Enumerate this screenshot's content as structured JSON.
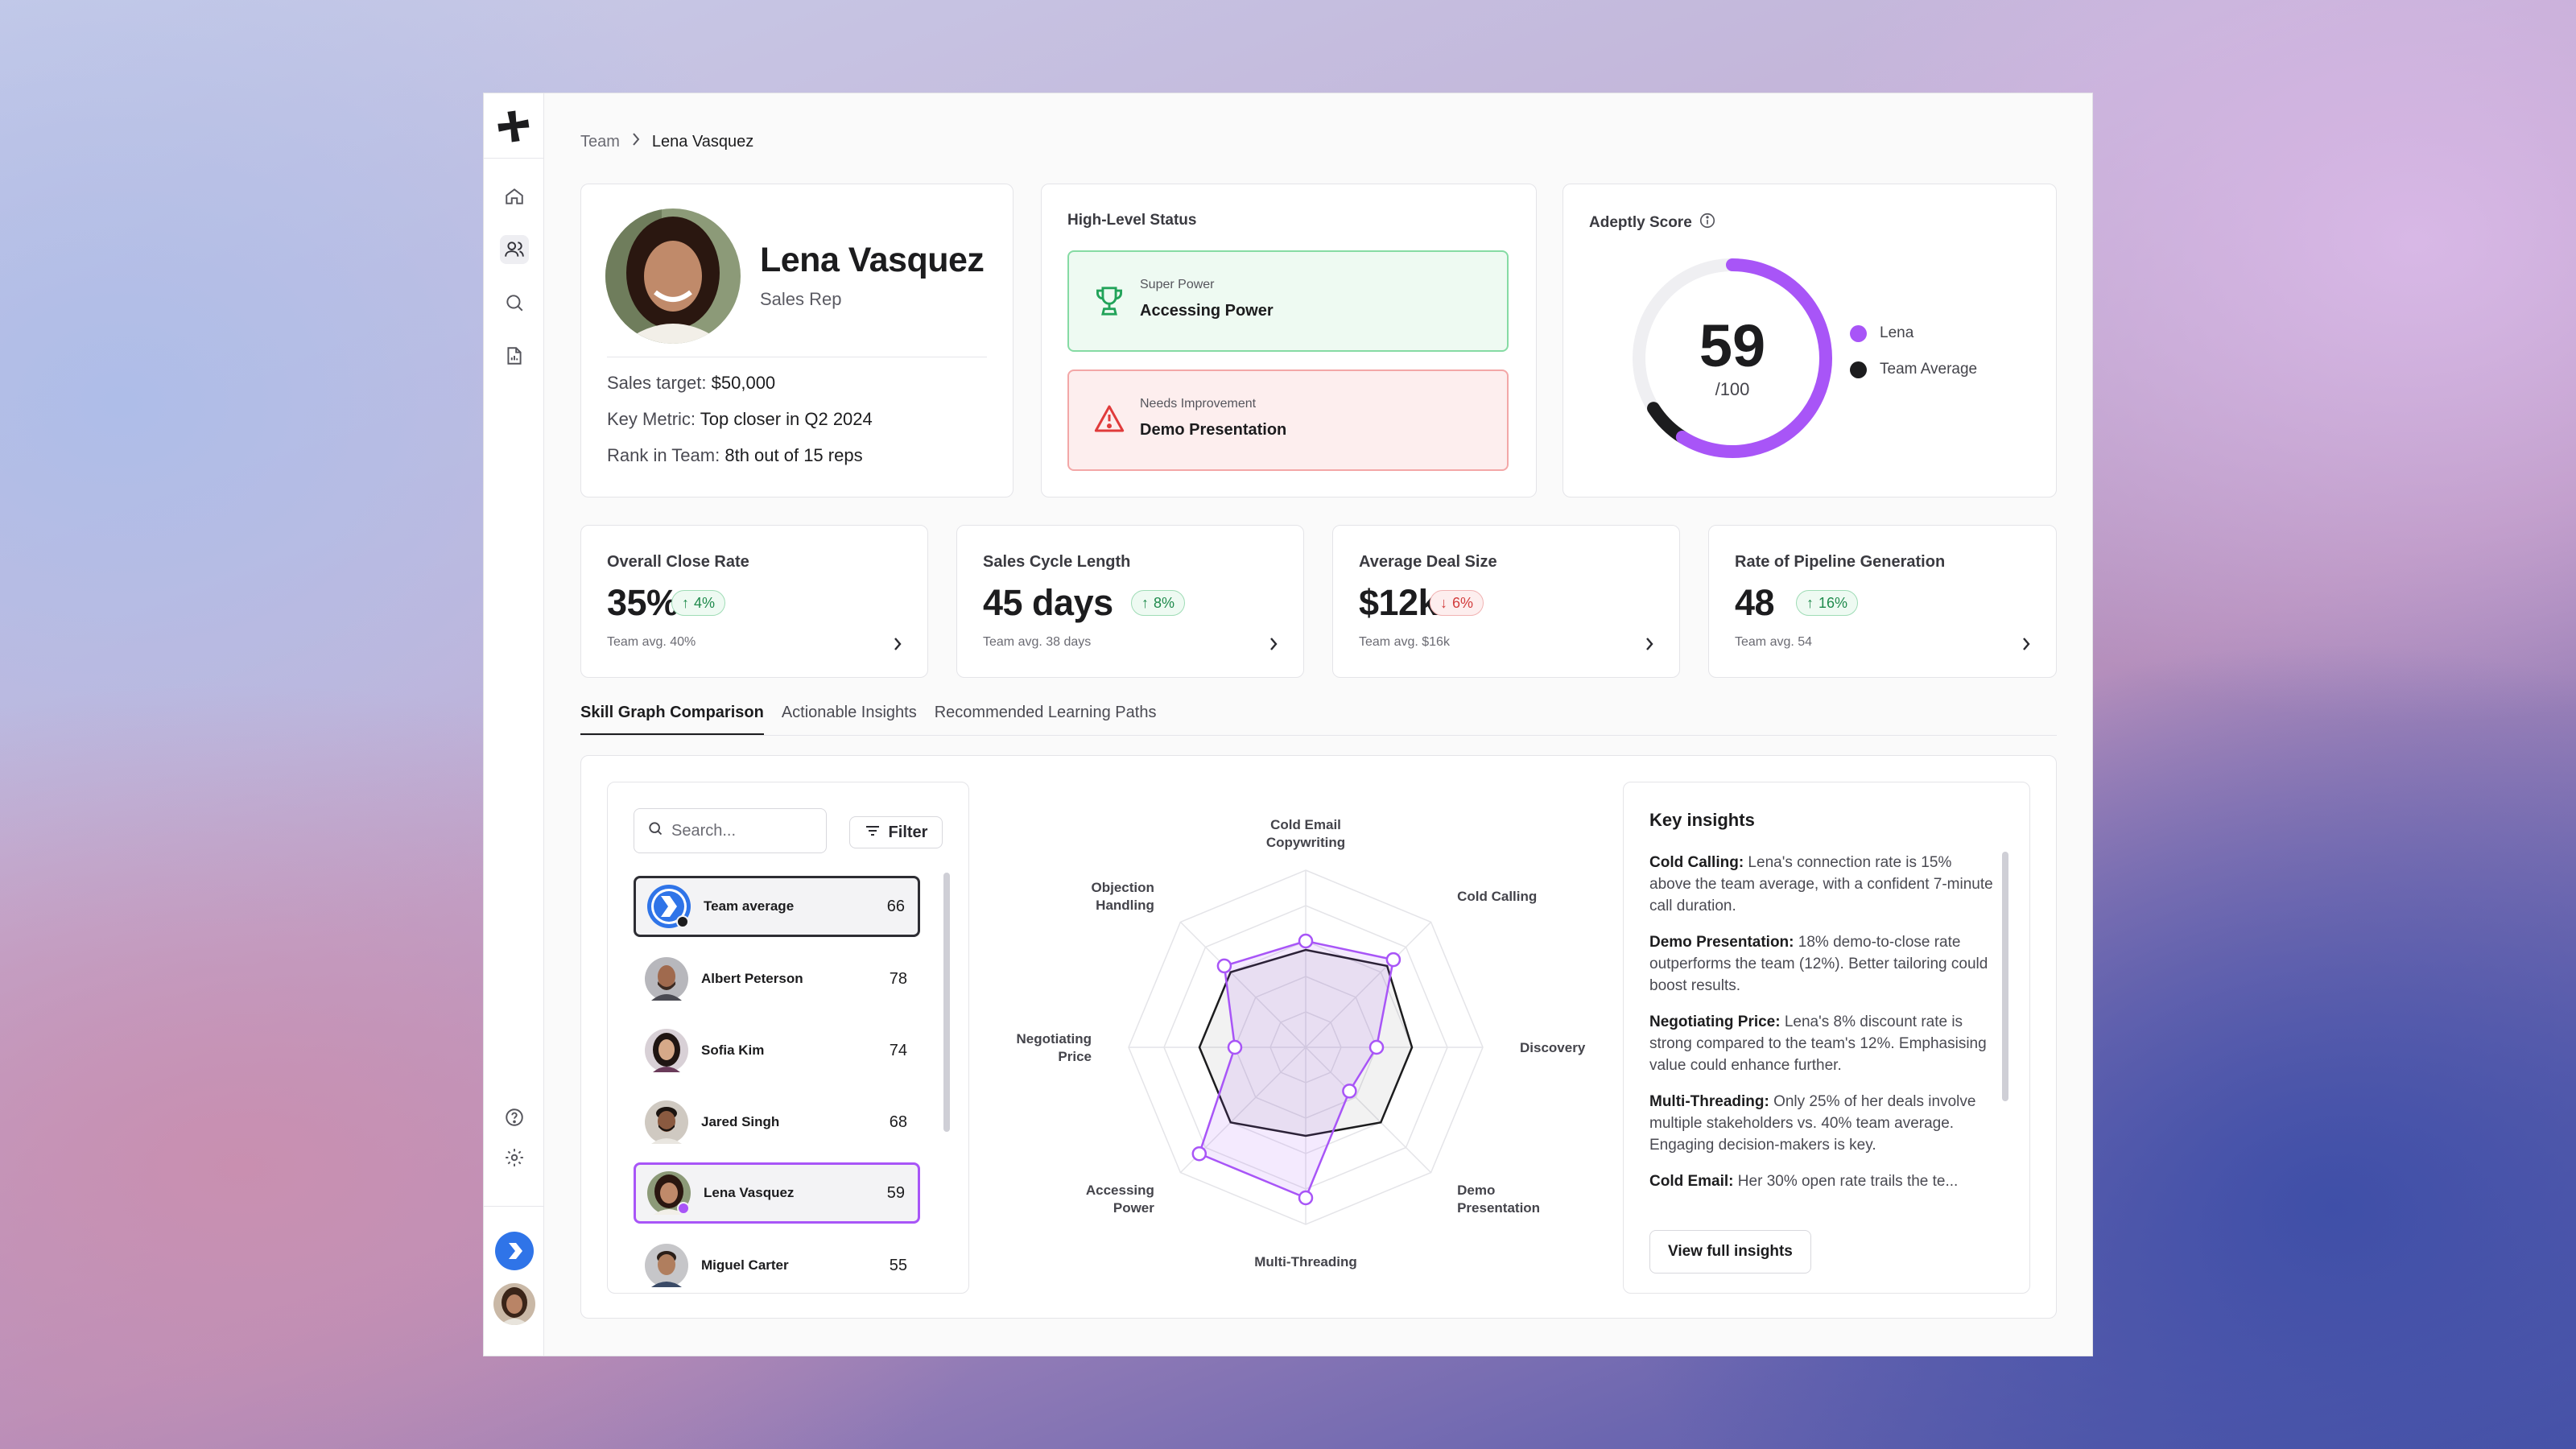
{
  "breadcrumb": {
    "parent": "Team",
    "current": "Lena Vasquez"
  },
  "profile": {
    "name": "Lena Vasquez",
    "role": "Sales Rep",
    "sales_target_label": "Sales target:",
    "sales_target": "$50,000",
    "key_metric_label": "Key Metric:",
    "key_metric": "Top closer in Q2 2024",
    "rank_label": "Rank in Team:",
    "rank": "8th out of 15 reps"
  },
  "status": {
    "title": "High-Level Status",
    "super_power": {
      "kicker": "Super Power",
      "value": "Accessing Power",
      "color": "#22c55e"
    },
    "improvement": {
      "kicker": "Needs Improvement",
      "value": "Demo Presentation",
      "color": "#ef4444"
    }
  },
  "score": {
    "title": "Adeptly Score",
    "value": "59",
    "suffix": "/100",
    "value_fraction": 0.59,
    "team_fraction": 0.66,
    "legend": [
      {
        "label": "Lena",
        "color": "#a855f7"
      },
      {
        "label": "Team Average",
        "color": "#1c1c1e"
      }
    ]
  },
  "kpis": [
    {
      "title": "Overall Close Rate",
      "value": "35%",
      "delta": "4%",
      "direction": "up",
      "avg": "Team avg. 40%"
    },
    {
      "title": "Sales Cycle Length",
      "value": "45 days",
      "delta": "8%",
      "direction": "up",
      "avg": "Team avg. 38 days"
    },
    {
      "title": "Average Deal Size",
      "value": "$12k",
      "delta": "6%",
      "direction": "down",
      "avg": "Team avg. $16k"
    },
    {
      "title": "Rate of Pipeline Generation",
      "value": "48",
      "delta": "16%",
      "direction": "up",
      "avg": "Team avg. 54"
    }
  ],
  "tabs": [
    "Skill Graph Comparison",
    "Actionable Insights",
    "Recommended Learning Paths"
  ],
  "list": {
    "search_placeholder": "Search...",
    "filter_label": "Filter",
    "items": [
      {
        "name": "Team average",
        "score": "66"
      },
      {
        "name": "Albert Peterson",
        "score": "78"
      },
      {
        "name": "Sofia Kim",
        "score": "74"
      },
      {
        "name": "Jared Singh",
        "score": "68"
      },
      {
        "name": "Lena Vasquez",
        "score": "59"
      },
      {
        "name": "Miguel Carter",
        "score": "55"
      }
    ]
  },
  "chart_data": {
    "type": "radar",
    "axes": [
      "Cold Email Copywriting",
      "Cold Calling",
      "Discovery",
      "Demo Presentation",
      "Multi-Threading",
      "Accessing Power",
      "Negotiating Price",
      "Objection Handling"
    ],
    "range": [
      0,
      100
    ],
    "series": [
      {
        "name": "Lena",
        "color": "#a855f7",
        "values": [
          60,
          70,
          40,
          35,
          85,
          85,
          40,
          65
        ]
      },
      {
        "name": "Team Average",
        "color": "#1c1c1e",
        "values": [
          55,
          65,
          60,
          60,
          50,
          60,
          60,
          60
        ]
      }
    ]
  },
  "insights": {
    "title": "Key insights",
    "items": [
      {
        "lead": "Cold Calling:",
        "text": " Lena's connection rate is 15% above the team average, with a confident 7-minute call duration."
      },
      {
        "lead": "Demo Presentation:",
        "text": " 18% demo-to-close rate outperforms the team (12%). Better tailoring could boost results."
      },
      {
        "lead": "Negotiating Price:",
        "text": " Lena's 8% discount rate is strong compared to the team's 12%. Emphasising value could enhance further."
      },
      {
        "lead": "Multi-Threading:",
        "text": " Only 25% of her deals involve multiple stakeholders vs. 40% team average. Engaging decision-makers is key."
      },
      {
        "lead": "Cold Email:",
        "text": " Her 30% open rate trails the te..."
      }
    ],
    "button": "View full insights"
  },
  "icons": [
    "plus-logo-icon",
    "home-icon",
    "users-icon",
    "search-icon",
    "report-icon",
    "help-icon",
    "settings-icon",
    "trophy-icon",
    "warning-icon",
    "info-icon",
    "chevron-right-icon",
    "filter-icon",
    "adeptly-logo-icon"
  ]
}
